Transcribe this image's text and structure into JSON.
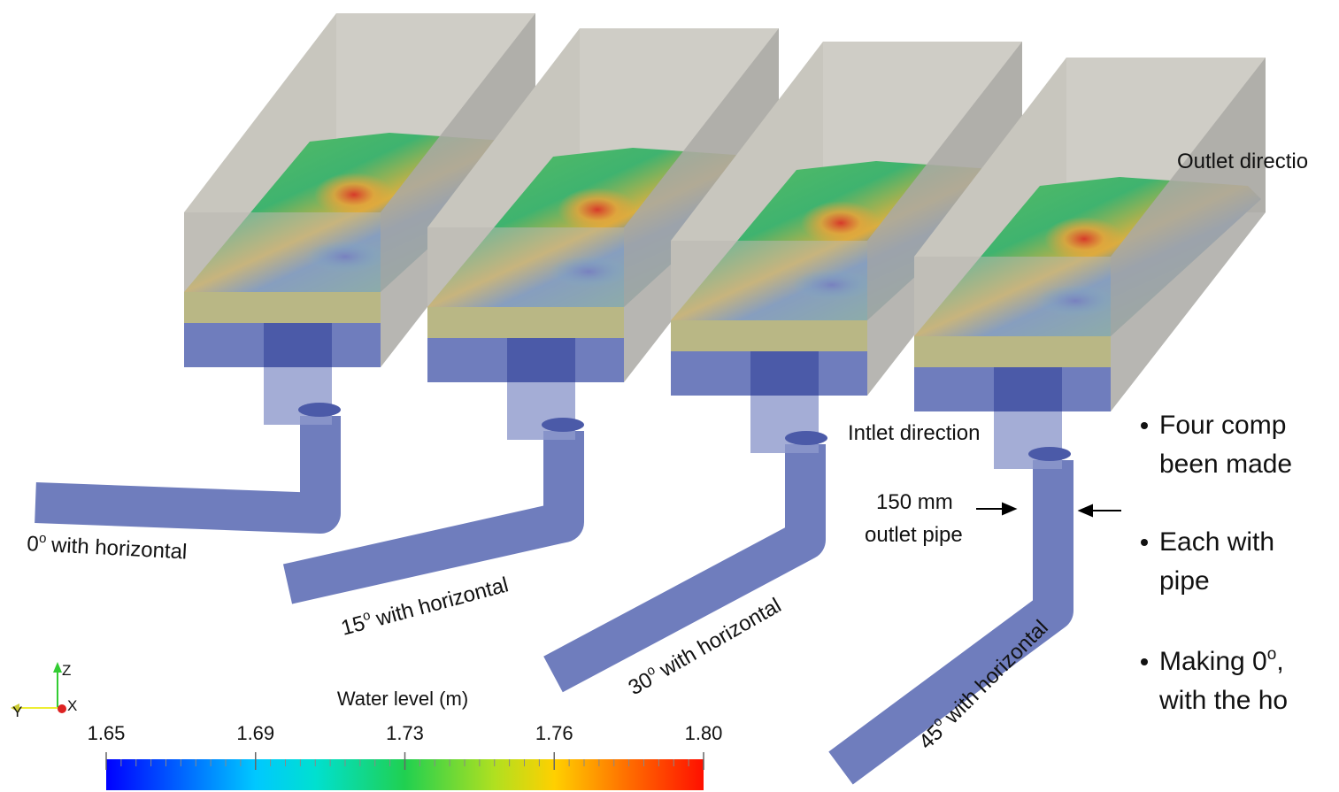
{
  "annotations": {
    "outlet_direction": "Outlet directio",
    "inlet_direction": "Intlet direction",
    "pipe_size": "150 mm",
    "pipe_name": "outlet pipe"
  },
  "cases": [
    {
      "angle": "0",
      "degree": "o",
      "text": "with horizontal"
    },
    {
      "angle": "15",
      "degree": "o",
      "text": "with horizontal"
    },
    {
      "angle": "30",
      "degree": "o",
      "text": "with horizontal"
    },
    {
      "angle": "45",
      "degree": "o",
      "text": "with horizontal"
    }
  ],
  "colorbar": {
    "title": "Water level (m)",
    "range": [
      1.65,
      1.8
    ],
    "ticks": [
      1.65,
      {
        "value": 1.6875,
        "label": "1.69"
      },
      {
        "value": 1.725,
        "label": "1.73"
      },
      {
        "value": 1.7625,
        "label": "1.76"
      },
      {
        "value": 1.8,
        "label": "1.80"
      }
    ]
  },
  "axes_triad": {
    "z": "Z",
    "y": "Y",
    "x": "X"
  },
  "bullets": [
    {
      "lines": [
        "Four comp",
        "been made"
      ]
    },
    {
      "lines": [
        "Each with",
        "pipe"
      ]
    },
    {
      "lead": "Making 0",
      "sup": "o",
      "after": ",",
      "lines": [
        "with the ho"
      ]
    }
  ]
}
